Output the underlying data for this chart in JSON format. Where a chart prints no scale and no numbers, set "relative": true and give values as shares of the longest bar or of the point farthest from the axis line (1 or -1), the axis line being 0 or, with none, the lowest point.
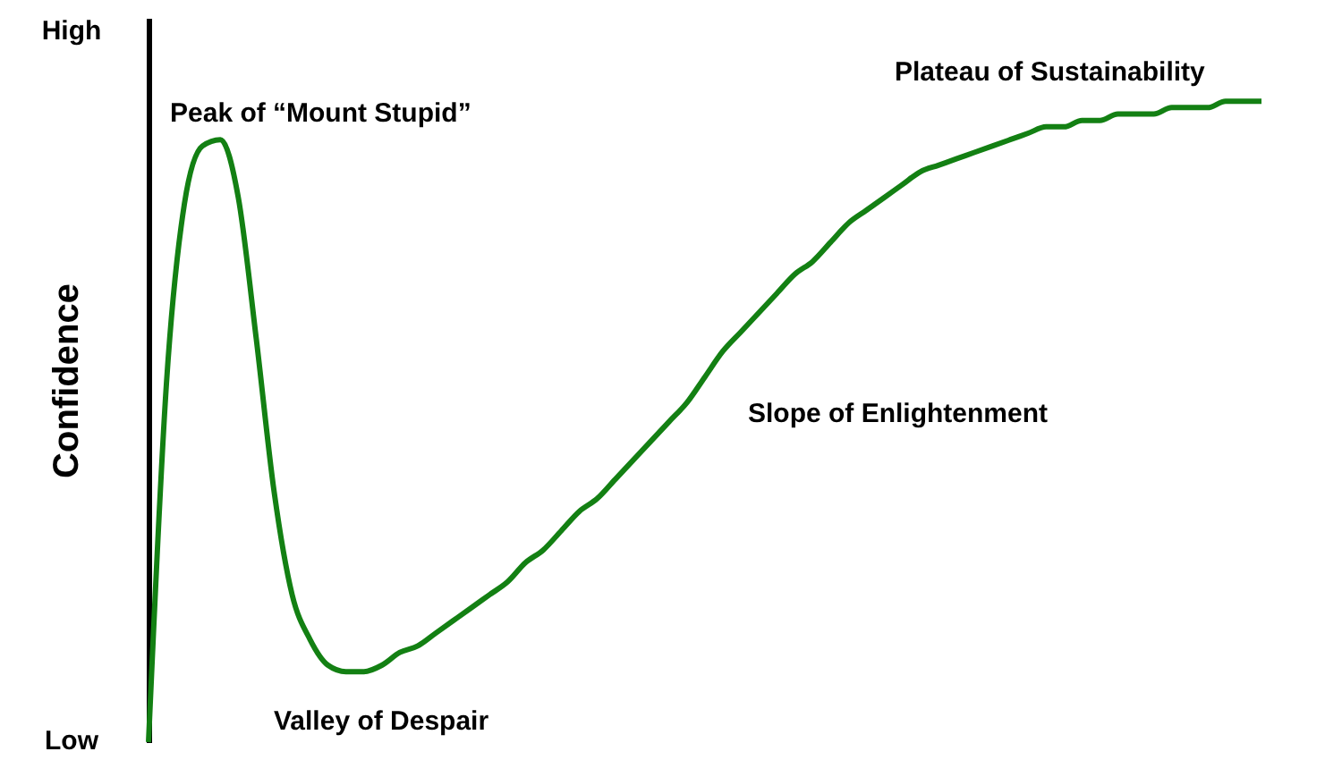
{
  "chart_data": {
    "type": "line",
    "relative": true,
    "ylabel": "Confidence",
    "color": "#138013",
    "categories": [
      null,
      null,
      null,
      null,
      null,
      null,
      null,
      null,
      null,
      null,
      null,
      null,
      null,
      null,
      null,
      null,
      null,
      null,
      null,
      null,
      null,
      null,
      null,
      null,
      null,
      null,
      null,
      null,
      null,
      null,
      null,
      null,
      null,
      null,
      null,
      null,
      null,
      null,
      null,
      null,
      null,
      null,
      null,
      null,
      null,
      null,
      null,
      null,
      null,
      null,
      null,
      null,
      null,
      null,
      null,
      null,
      null,
      null,
      null,
      null,
      null,
      null,
      null
    ],
    "values": [
      0,
      0.56,
      0.84,
      0.93,
      0.94,
      0.85,
      0.63,
      0.39,
      0.23,
      0.16,
      0.12,
      0.11,
      0.11,
      0.12,
      0.14,
      0.15,
      0.17,
      0.19,
      0.21,
      0.23,
      0.25,
      0.28,
      0.3,
      0.33,
      0.36,
      0.38,
      0.41,
      0.44,
      0.47,
      0.5,
      0.53,
      0.57,
      0.61,
      0.64,
      0.67,
      0.7,
      0.73,
      0.75,
      0.78,
      0.81,
      0.83,
      0.85,
      0.87,
      0.89,
      0.9,
      0.91,
      0.92,
      0.93,
      0.94,
      0.95,
      0.96,
      0.96,
      0.97,
      0.97,
      0.98,
      0.98,
      0.98,
      0.99,
      0.99,
      0.99,
      1.0,
      1,
      1
    ],
    "annotations": [
      "High",
      "Low",
      "Peak of “Mount Stupid”",
      "Plateau of Sustainability",
      "Slope of Enlightenment",
      "Valley of Despair"
    ]
  }
}
